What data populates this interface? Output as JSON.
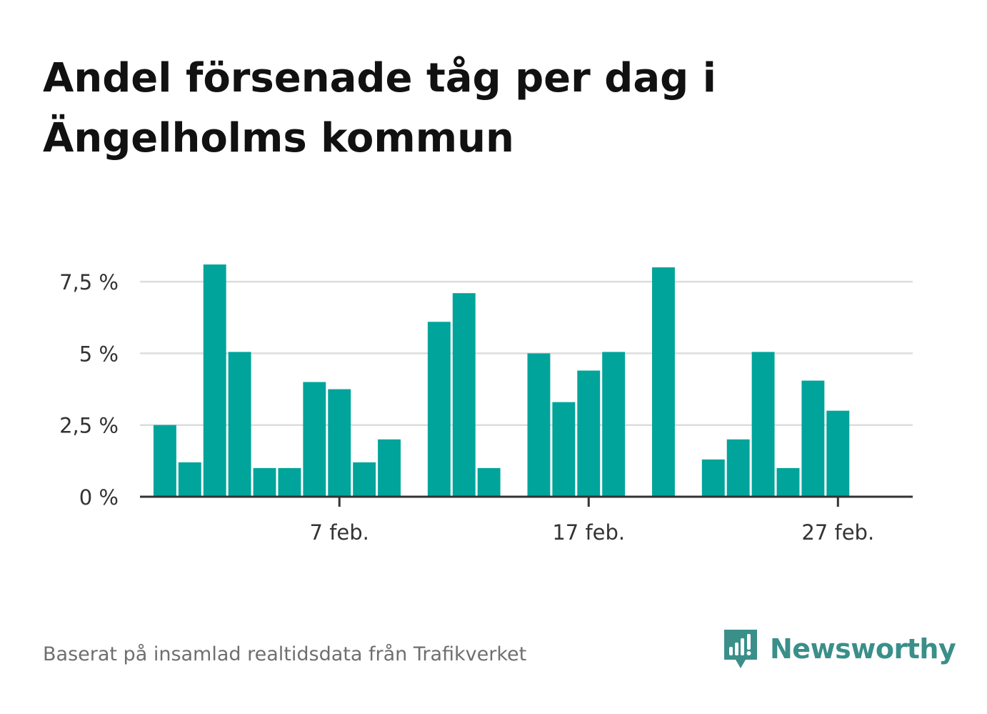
{
  "title": "Andel försenade tåg per dag i Ängelholms kommun",
  "footer": {
    "source": "Baserat på insamlad realtidsdata från Trafikverket",
    "brand": "Newsworthy"
  },
  "colors": {
    "bar": "#00a49a",
    "grid": "#dddddd",
    "axis": "#333333",
    "brand": "#3a8f89"
  },
  "icons": {
    "brand_logo": "newsworthy-chart-bubble-icon"
  },
  "chart_data": {
    "type": "bar",
    "x_type": "date",
    "x_range": [
      "2022-01-30",
      "2022-03-02"
    ],
    "x": [
      "2022-01-31",
      "2022-02-01",
      "2022-02-02",
      "2022-02-03",
      "2022-02-04",
      "2022-02-05",
      "2022-02-06",
      "2022-02-07",
      "2022-02-08",
      "2022-02-09",
      "2022-02-10",
      "2022-02-11",
      "2022-02-12",
      "2022-02-13",
      "2022-02-14",
      "2022-02-15",
      "2022-02-16",
      "2022-02-17",
      "2022-02-18",
      "2022-02-19",
      "2022-02-20",
      "2022-02-21",
      "2022-02-22",
      "2022-02-23",
      "2022-02-24",
      "2022-02-25",
      "2022-02-26",
      "2022-02-27",
      "2022-02-28"
    ],
    "values": [
      2.5,
      1.2,
      8.1,
      5.05,
      1.0,
      1.0,
      4.0,
      3.75,
      1.2,
      2.0,
      null,
      6.1,
      7.1,
      1.0,
      null,
      5.0,
      3.3,
      4.4,
      5.05,
      null,
      8.0,
      null,
      1.3,
      2.0,
      5.05,
      1.0,
      4.05,
      3.0,
      null
    ],
    "ylim": [
      0,
      8.6
    ],
    "yticks": [
      0,
      2.5,
      5,
      7.5
    ],
    "ytick_labels": [
      "0 %",
      "2,5 %",
      "5 %",
      "7,5 %"
    ],
    "xticks": [
      "2022-02-07",
      "2022-02-17",
      "2022-02-27"
    ],
    "xtick_labels": [
      "7 feb.",
      "17 feb.",
      "27 feb."
    ],
    "grid": true,
    "xlabel": "",
    "ylabel": ""
  }
}
